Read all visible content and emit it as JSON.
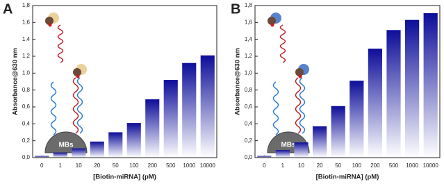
{
  "chart_data": [
    {
      "type": "bar",
      "panel_label": "A",
      "y_label": "Absorbance@630 nm",
      "x_label": "[Biotin-miRNA] (pM)",
      "annotation": "MBs",
      "categories": [
        "0",
        "1",
        "10",
        "20",
        "50",
        "100",
        "200",
        "500",
        "1000",
        "10000"
      ],
      "values": [
        0.02,
        0.06,
        0.11,
        0.19,
        0.3,
        0.41,
        0.69,
        0.92,
        1.12,
        1.21
      ],
      "color": "#0d0d9a",
      "ylim": [
        0,
        1.8
      ],
      "yticks": [
        {
          "value": 0,
          "label": "0,0"
        },
        {
          "value": 0.2,
          "label": "0,2"
        },
        {
          "value": 0.4,
          "label": "0,4"
        },
        {
          "value": 0.6,
          "label": "0,6"
        },
        {
          "value": 0.8,
          "label": "0,8"
        },
        {
          "value": 1.0,
          "label": "1,0"
        },
        {
          "value": 1.2,
          "label": "1,2"
        },
        {
          "value": 1.4,
          "label": "1,4"
        },
        {
          "value": 1.6,
          "label": "1,6"
        },
        {
          "value": 1.8,
          "label": "1,8"
        }
      ]
    },
    {
      "type": "bar",
      "panel_label": "B",
      "y_label": "Absorbance@630 nm",
      "x_label": "[Biotin-miRNA] (pM)",
      "annotation": "MBs",
      "categories": [
        "0",
        "1",
        "10",
        "20",
        "50",
        "100",
        "200",
        "500",
        "1000",
        "10000"
      ],
      "values": [
        0.02,
        0.09,
        0.18,
        0.37,
        0.61,
        0.91,
        1.29,
        1.51,
        1.63,
        1.71
      ],
      "color": "#0d0d9a",
      "ylim": [
        0,
        1.8
      ],
      "yticks": [
        {
          "value": 0,
          "label": "0,0"
        },
        {
          "value": 0.2,
          "label": "0,2"
        },
        {
          "value": 0.4,
          "label": "0,4"
        },
        {
          "value": 0.6,
          "label": "0,6"
        },
        {
          "value": 0.8,
          "label": "0,8"
        },
        {
          "value": 1.0,
          "label": "1,0"
        },
        {
          "value": 1.2,
          "label": "1,2"
        },
        {
          "value": 1.4,
          "label": "1,4"
        },
        {
          "value": 1.6,
          "label": "1,6"
        },
        {
          "value": 1.8,
          "label": "1,8"
        }
      ]
    }
  ]
}
